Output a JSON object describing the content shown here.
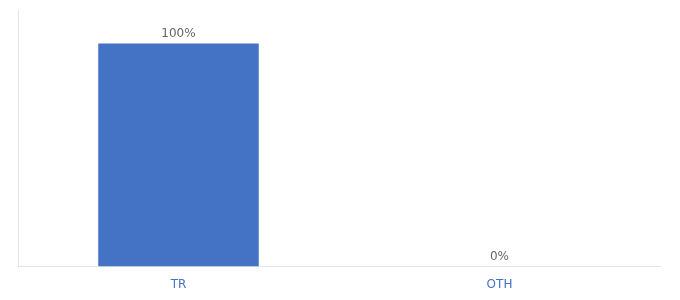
{
  "chart_data": {
    "type": "bar",
    "categories": [
      "TR",
      "OTH"
    ],
    "values": [
      100,
      0
    ],
    "value_labels": [
      "100%",
      "0%"
    ],
    "data_labels": true,
    "color": "#4472c4",
    "ylim": [
      0,
      115
    ],
    "grid": false,
    "tick_labels": "x"
  }
}
